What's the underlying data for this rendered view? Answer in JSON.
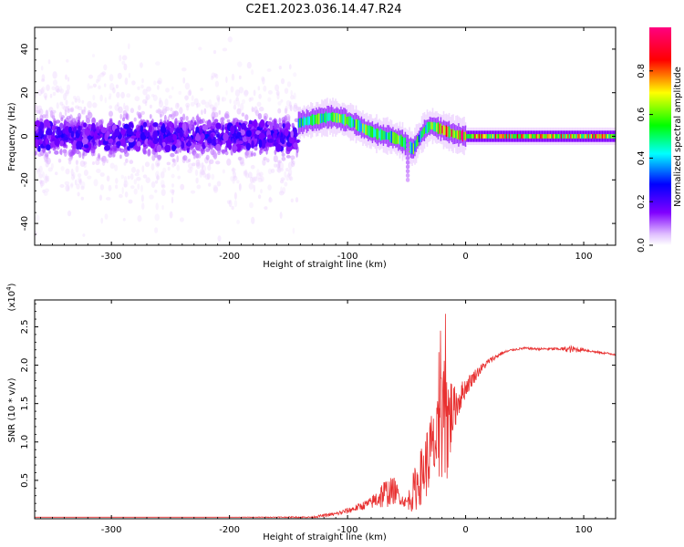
{
  "title": "C2E1.2023.036.14.47.R24",
  "chart_data": [
    {
      "type": "heatmap",
      "xlabel": "Height of straight line (km)",
      "ylabel": "Frequency (Hz)",
      "xlim": [
        -365,
        127
      ],
      "ylim": [
        -50,
        50
      ],
      "xticks": [
        -300,
        -200,
        -100,
        0,
        100
      ],
      "xtick_labels": [
        "-300",
        "-200",
        "-100",
        "0",
        "100"
      ],
      "yticks": [
        -40,
        -20,
        0,
        20,
        40
      ],
      "ytick_labels": [
        "-40",
        "-20",
        "0",
        "20",
        "40"
      ],
      "signal_trace": {
        "x": [
          -142,
          -135,
          -125,
          -115,
          -105,
          -95,
          -85,
          -75,
          -65,
          -55,
          -50,
          -45,
          -40,
          -35,
          -30,
          -25,
          -20,
          -15,
          -10,
          -5,
          0,
          20,
          60,
          127
        ],
        "freq": [
          6,
          7,
          8,
          9,
          8,
          6,
          3,
          1,
          0,
          -2,
          -4,
          -6,
          -1,
          3,
          5,
          4,
          3,
          2,
          1,
          0.5,
          0,
          0,
          0,
          0
        ],
        "strength": [
          0.55,
          0.55,
          0.6,
          0.6,
          0.62,
          0.6,
          0.6,
          0.55,
          0.58,
          0.6,
          0.55,
          0.6,
          0.55,
          0.55,
          0.6,
          0.65,
          0.8,
          0.8,
          0.85,
          0.9,
          0.9,
          0.9,
          0.9,
          0.9
        ]
      },
      "noise_region": {
        "x_start": -365,
        "x_end": -142,
        "freq_min": -50,
        "freq_max": 50
      }
    },
    {
      "type": "colorbar",
      "label": "Normalized spectral amplitude",
      "range": [
        0.0,
        1.0
      ],
      "ticks": [
        0.0,
        0.2,
        0.4,
        0.6,
        0.8
      ],
      "tick_labels": [
        "0.0",
        "0.2",
        "0.4",
        "0.6",
        "0.8"
      ],
      "colors": [
        "#ffffff",
        "#d9a6ff",
        "#8000ff",
        "#0000ff",
        "#00ffff",
        "#00ff00",
        "#ffff00",
        "#ff0000",
        "#ff0080"
      ]
    },
    {
      "type": "line",
      "xlabel": "Height of straight line (km)",
      "ylabel": "SNR (10 * v/v)",
      "yscale_label": "(x10",
      "yscale_exp": "4",
      "yscale_close": ")",
      "xlim": [
        -365,
        127
      ],
      "ylim": [
        0,
        2.85
      ],
      "xticks": [
        -300,
        -200,
        -100,
        0,
        100
      ],
      "xtick_labels": [
        "-300",
        "-200",
        "-100",
        "0",
        "100"
      ],
      "yticks": [
        0.5,
        1.0,
        1.5,
        2.0,
        2.5
      ],
      "ytick_labels": [
        "0.5",
        "1.0",
        "1.5",
        "2.0",
        "2.5"
      ],
      "color": "#e83030",
      "envelope": {
        "x": [
          -365,
          -200,
          -130,
          -120,
          -110,
          -100,
          -90,
          -80,
          -70,
          -60,
          -55,
          -50,
          -45,
          -40,
          -35,
          -30,
          -25,
          -20,
          -15,
          -10,
          -5,
          0,
          10,
          20,
          30,
          40,
          50,
          60,
          80,
          90,
          100,
          110,
          127
        ],
        "base": [
          0.02,
          0.02,
          0.02,
          0.04,
          0.06,
          0.1,
          0.15,
          0.2,
          0.3,
          0.35,
          0.25,
          0.2,
          0.3,
          0.45,
          0.6,
          0.8,
          0.9,
          1.0,
          1.2,
          1.4,
          1.55,
          1.7,
          1.9,
          2.05,
          2.15,
          2.2,
          2.22,
          2.21,
          2.21,
          2.2,
          2.2,
          2.17,
          2.14
        ],
        "spread": [
          0.0,
          0.0,
          0.02,
          0.04,
          0.05,
          0.08,
          0.1,
          0.15,
          0.4,
          0.35,
          0.15,
          0.15,
          0.5,
          0.7,
          0.8,
          1.1,
          0.9,
          1.9,
          1.6,
          0.6,
          0.4,
          0.25,
          0.15,
          0.08,
          0.05,
          0.03,
          0.03,
          0.03,
          0.04,
          0.1,
          0.04,
          0.03,
          0.03
        ]
      }
    }
  ]
}
